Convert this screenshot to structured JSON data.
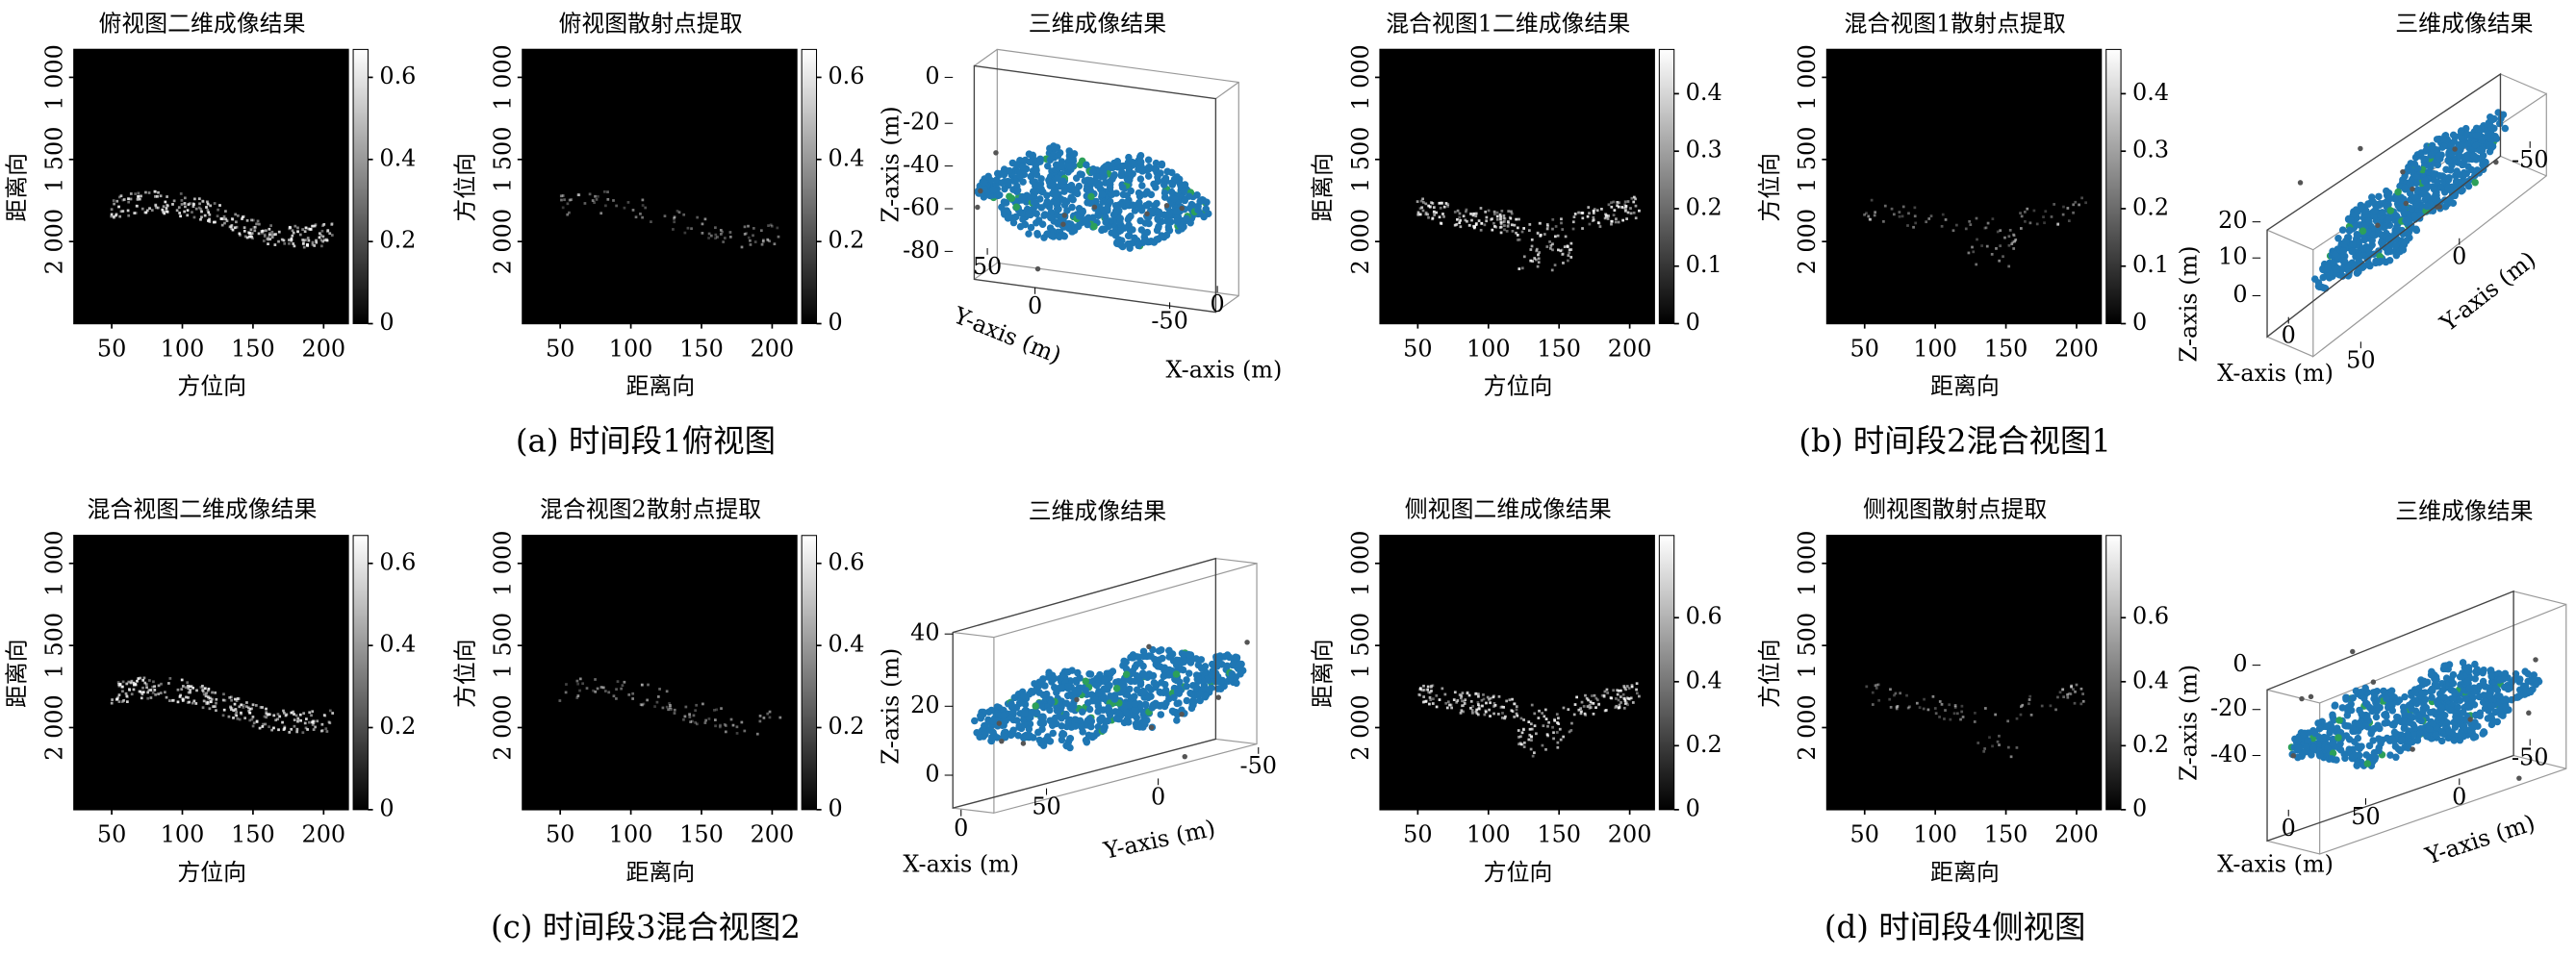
{
  "figure": {
    "subfigures": [
      {
        "caption": "(a) 时间段1俯视图",
        "panels": [
          {
            "kind": "image",
            "title": "俯视图二维成像结果",
            "ylabel": "距离向",
            "xlabel": "方位向",
            "yticks": [
              "1 000",
              "1 500",
              "2 000"
            ],
            "xticks": [
              50,
              100,
              150,
              200
            ],
            "colorbar": [
              0,
              0.2,
              0.4,
              0.6
            ]
          },
          {
            "kind": "image",
            "title": "俯视图散射点提取",
            "ylabel": "方位向",
            "xlabel": "距离向",
            "yticks": [
              "1 000",
              "1 500",
              "2 000"
            ],
            "xticks": [
              50,
              100,
              150,
              200
            ],
            "colorbar": [
              0,
              0.2,
              0.4,
              0.6
            ]
          },
          {
            "kind": "3d",
            "title": "三维成像结果",
            "xlabel": "X-axis (m)",
            "ylabel": "Y-axis (m)",
            "zlabel": "Z-axis (m)",
            "xticks": [
              -50,
              0
            ],
            "yticks": [
              50,
              0
            ],
            "zticks": [
              0,
              -20,
              -40,
              -60,
              -80
            ]
          }
        ]
      },
      {
        "caption": "(b) 时间段2混合视图1",
        "panels": [
          {
            "kind": "image",
            "title": "混合视图1二维成像结果",
            "ylabel": "距离向",
            "xlabel": "方位向",
            "yticks": [
              "1 000",
              "1 500",
              "2 000"
            ],
            "xticks": [
              50,
              100,
              150,
              200
            ],
            "colorbar": [
              0,
              0.1,
              0.2,
              0.3,
              0.4
            ]
          },
          {
            "kind": "image",
            "title": "混合视图1散射点提取",
            "ylabel": "方位向",
            "xlabel": "距离向",
            "yticks": [
              "1 000",
              "1 500",
              "2 000"
            ],
            "xticks": [
              50,
              100,
              150,
              200
            ],
            "colorbar": [
              0,
              0.1,
              0.2,
              0.3,
              0.4
            ]
          },
          {
            "kind": "3d",
            "title": "三维成像结果",
            "xlabel": "X-axis (m)",
            "ylabel": "Y-axis (m)",
            "zlabel": "Z-axis (m)",
            "xticks": [
              0
            ],
            "yticks": [
              50,
              0,
              -50
            ],
            "zticks": [
              20,
              10,
              0
            ]
          }
        ]
      },
      {
        "caption": "(c) 时间段3混合视图2",
        "panels": [
          {
            "kind": "image",
            "title": "混合视图二维成像结果",
            "ylabel": "距离向",
            "xlabel": "方位向",
            "yticks": [
              "1 000",
              "1 500",
              "2 000"
            ],
            "xticks": [
              50,
              100,
              150,
              200
            ],
            "colorbar": [
              0,
              0.2,
              0.4,
              0.6
            ]
          },
          {
            "kind": "image",
            "title": "混合视图2散射点提取",
            "ylabel": "方位向",
            "xlabel": "距离向",
            "yticks": [
              "1 000",
              "1 500",
              "2 000"
            ],
            "xticks": [
              50,
              100,
              150,
              200
            ],
            "colorbar": [
              0,
              0.2,
              0.4,
              0.6
            ]
          },
          {
            "kind": "3d",
            "title": "三维成像结果",
            "xlabel": "X-axis (m)",
            "ylabel": "Y-axis (m)",
            "zlabel": "Z-axis (m)",
            "xticks": [
              0
            ],
            "yticks": [
              50,
              0,
              -50
            ],
            "zticks": [
              40,
              20,
              0
            ]
          }
        ]
      },
      {
        "caption": "(d) 时间段4侧视图",
        "panels": [
          {
            "kind": "image",
            "title": "侧视图二维成像结果",
            "ylabel": "距离向",
            "xlabel": "方位向",
            "yticks": [
              "1 000",
              "1 500",
              "2 000"
            ],
            "xticks": [
              50,
              100,
              150,
              200
            ],
            "colorbar": [
              0,
              0.2,
              0.4,
              0.6
            ]
          },
          {
            "kind": "image",
            "title": "侧视图散射点提取",
            "ylabel": "方位向",
            "xlabel": "距离向",
            "yticks": [
              "1 000",
              "1 500",
              "2 000"
            ],
            "xticks": [
              50,
              100,
              150,
              200
            ],
            "colorbar": [
              0,
              0.2,
              0.4,
              0.6
            ]
          },
          {
            "kind": "3d",
            "title": "三维成像结果",
            "xlabel": "X-axis (m)",
            "ylabel": "Y-axis (m)",
            "zlabel": "Z-axis (m)",
            "xticks": [
              0
            ],
            "yticks": [
              50,
              0,
              -50
            ],
            "zticks": [
              0,
              -20,
              -40
            ]
          }
        ]
      }
    ]
  }
}
